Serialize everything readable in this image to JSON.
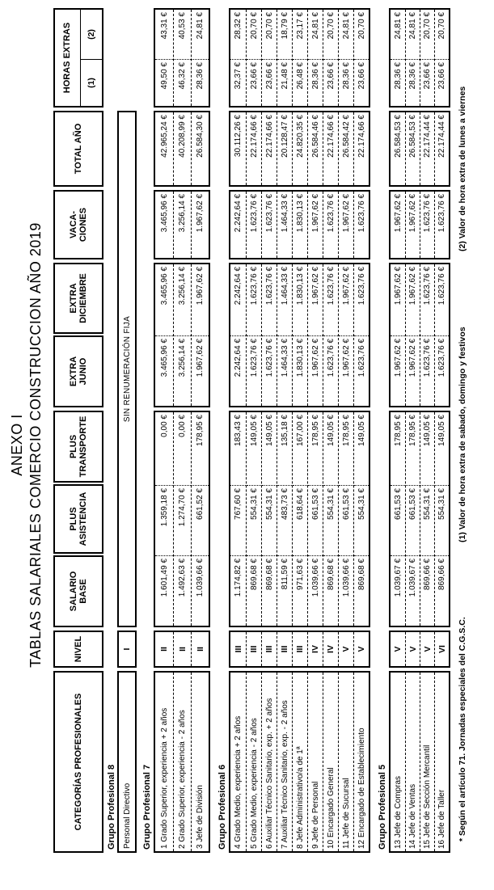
{
  "title": {
    "line1": "ANEXO I",
    "line2": "TABLAS SALARIALES COMERCIO CONSTRUCCION AÑO 2019"
  },
  "header": {
    "columns": [
      {
        "key": "cat",
        "lines": [
          "CATEGORÍAS PROFESIONALES"
        ]
      },
      {
        "key": "nivel",
        "lines": [
          "NIVEL"
        ]
      },
      {
        "key": "sal",
        "lines": [
          "SALARIO",
          "BASE"
        ]
      },
      {
        "key": "asist",
        "lines": [
          "PLUS",
          "ASISTENCIA"
        ]
      },
      {
        "key": "trans",
        "lines": [
          "PLUS",
          "TRANSPORTE"
        ]
      },
      {
        "key": "jun",
        "lines": [
          "EXTRA",
          "JUNIO"
        ]
      },
      {
        "key": "dic",
        "lines": [
          "EXTRA",
          "DICIEMBRE"
        ]
      },
      {
        "key": "vaca",
        "lines": [
          "VACA-",
          "CIONES"
        ]
      },
      {
        "key": "total",
        "lines": [
          "TOTAL AÑO"
        ]
      },
      {
        "key": "horas",
        "lines": [
          "HORAS EXTRAS"
        ],
        "sub": [
          "(1)",
          "(2)"
        ]
      }
    ]
  },
  "groups": [
    {
      "label": "Grupo Profesional 8",
      "note_row": {
        "category": "Personal Directivo",
        "nivel": "I",
        "note": "SIN RENUMERACIÓN FIJA"
      }
    },
    {
      "label": "Grupo Profesional 7",
      "rows": [
        {
          "num": "1",
          "category": "Grado Superior, experiencia + 2 años",
          "nivel": "II",
          "salario": "1.601,49 €",
          "asistencia": "1.359,18 €",
          "transporte": "0,00 €",
          "junio": "3.465,96 €",
          "diciembre": "3.465,96 €",
          "vacaciones": "3.465,96 €",
          "total": "42.965,24 €",
          "horas1": "49,50 €",
          "horas2": "43,31 €"
        },
        {
          "num": "2",
          "category": "Grado Superior, experiencia - 2 años",
          "nivel": "II",
          "salario": "1.492,63 €",
          "asistencia": "1.274,70 €",
          "transporte": "0,00 €",
          "junio": "3.256,14 €",
          "diciembre": "3.256,14 €",
          "vacaciones": "3.256,14 €",
          "total": "40.208,99 €",
          "horas1": "46,32 €",
          "horas2": "40,53 €"
        },
        {
          "num": "3",
          "category": "Jefe de División",
          "nivel": "II",
          "salario": "1.039,66 €",
          "asistencia": "661,52 €",
          "transporte": "178,95 €",
          "junio": "1.967,62 €",
          "diciembre": "1.967,62 €",
          "vacaciones": "1.967,62 €",
          "total": "26.584,30 €",
          "horas1": "28,36 €",
          "horas2": "24,81 €"
        }
      ]
    },
    {
      "label": "Grupo Profesional 6",
      "rows": [
        {
          "num": "4",
          "category": "Grado Medio, experiencia + 2 años",
          "nivel": "III",
          "salario": "1.174,82 €",
          "asistencia": "767,60 €",
          "transporte": "183,43 €",
          "junio": "2.242,64 €",
          "diciembre": "2.242,64 €",
          "vacaciones": "2.242,64 €",
          "total": "30.112,26 €",
          "horas1": "32,37 €",
          "horas2": "28,32 €"
        },
        {
          "num": "5",
          "category": "Grado Medio, experiencia - 2 años",
          "nivel": "III",
          "salario": "869,68 €",
          "asistencia": "554,31 €",
          "transporte": "149,05 €",
          "junio": "1.623,76 €",
          "diciembre": "1.623,76 €",
          "vacaciones": "1.623,76 €",
          "total": "22.174,66 €",
          "horas1": "23,66 €",
          "horas2": "20,70 €"
        },
        {
          "num": "6",
          "category": "Auxiliar Técnico Sanitario, exp. + 2 años",
          "nivel": "III",
          "salario": "869,68 €",
          "asistencia": "554,31 €",
          "transporte": "149,05 €",
          "junio": "1.623,76 €",
          "diciembre": "1.623,76 €",
          "vacaciones": "1.623,76 €",
          "total": "22.174,66 €",
          "horas1": "23,66 €",
          "horas2": "20,70 €"
        },
        {
          "num": "7",
          "category": "Auxiliar Técnico Sanitario, exp. - 2 años",
          "nivel": "III",
          "salario": "811,59 €",
          "asistencia": "483,73 €",
          "transporte": "135,18 €",
          "junio": "1.464,33 €",
          "diciembre": "1.464,33 €",
          "vacaciones": "1.464,33 €",
          "total": "20.128,47 €",
          "horas1": "21,48 €",
          "horas2": "18,79 €"
        },
        {
          "num": "8",
          "category": "Jefe Administrativo/a de 1ª",
          "nivel": "III",
          "salario": "971,63 €",
          "asistencia": "618,64 €",
          "transporte": "167,00 €",
          "junio": "1.830,13 €",
          "diciembre": "1.830,13 €",
          "vacaciones": "1.830,13 €",
          "total": "24.820,35 €",
          "horas1": "26,48 €",
          "horas2": "23,17 €"
        },
        {
          "num": "9",
          "category": "Jefe de Personal",
          "nivel": "IV",
          "salario": "1.039,66 €",
          "asistencia": "661,53 €",
          "transporte": "178,95 €",
          "junio": "1.967,62 €",
          "diciembre": "1.967,62 €",
          "vacaciones": "1.967,62 €",
          "total": "26.584,46 €",
          "horas1": "28,36 €",
          "horas2": "24,81 €"
        },
        {
          "num": "10",
          "category": "Encargado General",
          "nivel": "IV",
          "salario": "869,68 €",
          "asistencia": "554,31 €",
          "transporte": "149,05 €",
          "junio": "1.623,76 €",
          "diciembre": "1.623,76 €",
          "vacaciones": "1.623,76 €",
          "total": "22.174,66 €",
          "horas1": "23,66 €",
          "horas2": "20,70 €"
        },
        {
          "num": "11",
          "category": "Jefe de Sucursal",
          "nivel": "V",
          "salario": "1.039,66 €",
          "asistencia": "661,53 €",
          "transporte": "178,95 €",
          "junio": "1.967,62 €",
          "diciembre": "1.967,62 €",
          "vacaciones": "1.967,62 €",
          "total": "26.584,42 €",
          "horas1": "28,36 €",
          "horas2": "24,81 €"
        },
        {
          "num": "12",
          "category": "Encargado de Establecimiento",
          "nivel": "V",
          "salario": "869,68 €",
          "asistencia": "554,31 €",
          "transporte": "149,05 €",
          "junio": "1.623,76 €",
          "diciembre": "1.623,76 €",
          "vacaciones": "1.623,76 €",
          "total": "22.174,66 €",
          "horas1": "23,66 €",
          "horas2": "20,70 €"
        }
      ]
    },
    {
      "label": "Grupo Profesional 5",
      "rows": [
        {
          "num": "13",
          "category": "Jefe de Compras",
          "nivel": "V",
          "salario": "1.039,67 €",
          "asistencia": "661,53 €",
          "transporte": "178,95 €",
          "junio": "1.967,62 €",
          "diciembre": "1.967,62 €",
          "vacaciones": "1.967,62 €",
          "total": "26.584,53 €",
          "horas1": "28,36 €",
          "horas2": "24,81 €"
        },
        {
          "num": "14",
          "category": "Jefe de Ventas",
          "nivel": "V",
          "salario": "1.039,67 €",
          "asistencia": "661,53 €",
          "transporte": "178,95 €",
          "junio": "1.967,62 €",
          "diciembre": "1.967,62 €",
          "vacaciones": "1.967,62 €",
          "total": "26.584,53 €",
          "horas1": "28,36 €",
          "horas2": "24,81 €"
        },
        {
          "num": "15",
          "category": "Jefe de Sección Mercantil",
          "nivel": "V",
          "salario": "869,66 €",
          "asistencia": "554,31 €",
          "transporte": "149,05 €",
          "junio": "1.623,76 €",
          "diciembre": "1.623,76 €",
          "vacaciones": "1.623,76 €",
          "total": "22.174,44 €",
          "horas1": "23,66 €",
          "horas2": "20,70 €"
        },
        {
          "num": "16",
          "category": "Jefe de Taller",
          "nivel": "VI",
          "salario": "869,66 €",
          "asistencia": "554,31 €",
          "transporte": "149,05 €",
          "junio": "1.623,76 €",
          "diciembre": "1.623,76 €",
          "vacaciones": "1.623,76 €",
          "total": "22.174,44 €",
          "horas1": "23,66 €",
          "horas2": "20,70 €"
        }
      ]
    }
  ],
  "footnotes": {
    "left": "* Según el artículo 71. Jornadas especiales del C.G.S.C.",
    "f1": "(1) Valor de hora extra de sabado, domingo y festivos",
    "f2": "(2) Valor de hora extra de lunes a viernes"
  },
  "colors": {
    "ink": "#000000",
    "paper": "#ffffff"
  }
}
